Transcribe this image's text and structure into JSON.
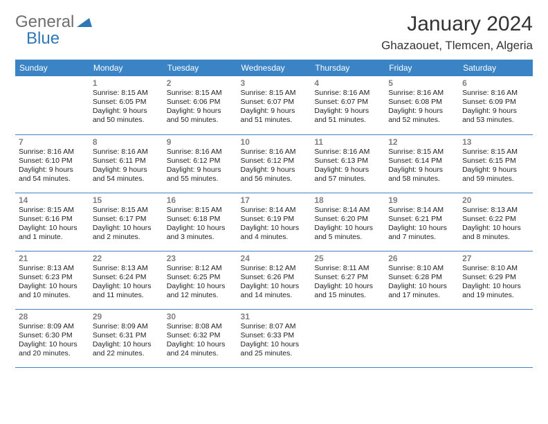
{
  "logo": {
    "text1": "General",
    "text2": "Blue"
  },
  "title": "January 2024",
  "location": "Ghazaouet, Tlemcen, Algeria",
  "colors": {
    "header_bg": "#3a84c5",
    "header_fg": "#ffffff",
    "daynum": "#808080",
    "border": "#3a84c5",
    "logo_gray": "#6f6f6f",
    "logo_blue": "#2f78b8"
  },
  "weekdays": [
    "Sunday",
    "Monday",
    "Tuesday",
    "Wednesday",
    "Thursday",
    "Friday",
    "Saturday"
  ],
  "start_offset": 1,
  "days": [
    {
      "n": 1,
      "sunrise": "8:15 AM",
      "sunset": "6:05 PM",
      "daylight": "9 hours and 50 minutes."
    },
    {
      "n": 2,
      "sunrise": "8:15 AM",
      "sunset": "6:06 PM",
      "daylight": "9 hours and 50 minutes."
    },
    {
      "n": 3,
      "sunrise": "8:15 AM",
      "sunset": "6:07 PM",
      "daylight": "9 hours and 51 minutes."
    },
    {
      "n": 4,
      "sunrise": "8:16 AM",
      "sunset": "6:07 PM",
      "daylight": "9 hours and 51 minutes."
    },
    {
      "n": 5,
      "sunrise": "8:16 AM",
      "sunset": "6:08 PM",
      "daylight": "9 hours and 52 minutes."
    },
    {
      "n": 6,
      "sunrise": "8:16 AM",
      "sunset": "6:09 PM",
      "daylight": "9 hours and 53 minutes."
    },
    {
      "n": 7,
      "sunrise": "8:16 AM",
      "sunset": "6:10 PM",
      "daylight": "9 hours and 54 minutes."
    },
    {
      "n": 8,
      "sunrise": "8:16 AM",
      "sunset": "6:11 PM",
      "daylight": "9 hours and 54 minutes."
    },
    {
      "n": 9,
      "sunrise": "8:16 AM",
      "sunset": "6:12 PM",
      "daylight": "9 hours and 55 minutes."
    },
    {
      "n": 10,
      "sunrise": "8:16 AM",
      "sunset": "6:12 PM",
      "daylight": "9 hours and 56 minutes."
    },
    {
      "n": 11,
      "sunrise": "8:16 AM",
      "sunset": "6:13 PM",
      "daylight": "9 hours and 57 minutes."
    },
    {
      "n": 12,
      "sunrise": "8:15 AM",
      "sunset": "6:14 PM",
      "daylight": "9 hours and 58 minutes."
    },
    {
      "n": 13,
      "sunrise": "8:15 AM",
      "sunset": "6:15 PM",
      "daylight": "9 hours and 59 minutes."
    },
    {
      "n": 14,
      "sunrise": "8:15 AM",
      "sunset": "6:16 PM",
      "daylight": "10 hours and 1 minute."
    },
    {
      "n": 15,
      "sunrise": "8:15 AM",
      "sunset": "6:17 PM",
      "daylight": "10 hours and 2 minutes."
    },
    {
      "n": 16,
      "sunrise": "8:15 AM",
      "sunset": "6:18 PM",
      "daylight": "10 hours and 3 minutes."
    },
    {
      "n": 17,
      "sunrise": "8:14 AM",
      "sunset": "6:19 PM",
      "daylight": "10 hours and 4 minutes."
    },
    {
      "n": 18,
      "sunrise": "8:14 AM",
      "sunset": "6:20 PM",
      "daylight": "10 hours and 5 minutes."
    },
    {
      "n": 19,
      "sunrise": "8:14 AM",
      "sunset": "6:21 PM",
      "daylight": "10 hours and 7 minutes."
    },
    {
      "n": 20,
      "sunrise": "8:13 AM",
      "sunset": "6:22 PM",
      "daylight": "10 hours and 8 minutes."
    },
    {
      "n": 21,
      "sunrise": "8:13 AM",
      "sunset": "6:23 PM",
      "daylight": "10 hours and 10 minutes."
    },
    {
      "n": 22,
      "sunrise": "8:13 AM",
      "sunset": "6:24 PM",
      "daylight": "10 hours and 11 minutes."
    },
    {
      "n": 23,
      "sunrise": "8:12 AM",
      "sunset": "6:25 PM",
      "daylight": "10 hours and 12 minutes."
    },
    {
      "n": 24,
      "sunrise": "8:12 AM",
      "sunset": "6:26 PM",
      "daylight": "10 hours and 14 minutes."
    },
    {
      "n": 25,
      "sunrise": "8:11 AM",
      "sunset": "6:27 PM",
      "daylight": "10 hours and 15 minutes."
    },
    {
      "n": 26,
      "sunrise": "8:10 AM",
      "sunset": "6:28 PM",
      "daylight": "10 hours and 17 minutes."
    },
    {
      "n": 27,
      "sunrise": "8:10 AM",
      "sunset": "6:29 PM",
      "daylight": "10 hours and 19 minutes."
    },
    {
      "n": 28,
      "sunrise": "8:09 AM",
      "sunset": "6:30 PM",
      "daylight": "10 hours and 20 minutes."
    },
    {
      "n": 29,
      "sunrise": "8:09 AM",
      "sunset": "6:31 PM",
      "daylight": "10 hours and 22 minutes."
    },
    {
      "n": 30,
      "sunrise": "8:08 AM",
      "sunset": "6:32 PM",
      "daylight": "10 hours and 24 minutes."
    },
    {
      "n": 31,
      "sunrise": "8:07 AM",
      "sunset": "6:33 PM",
      "daylight": "10 hours and 25 minutes."
    }
  ],
  "labels": {
    "sunrise": "Sunrise:",
    "sunset": "Sunset:",
    "daylight": "Daylight:"
  }
}
